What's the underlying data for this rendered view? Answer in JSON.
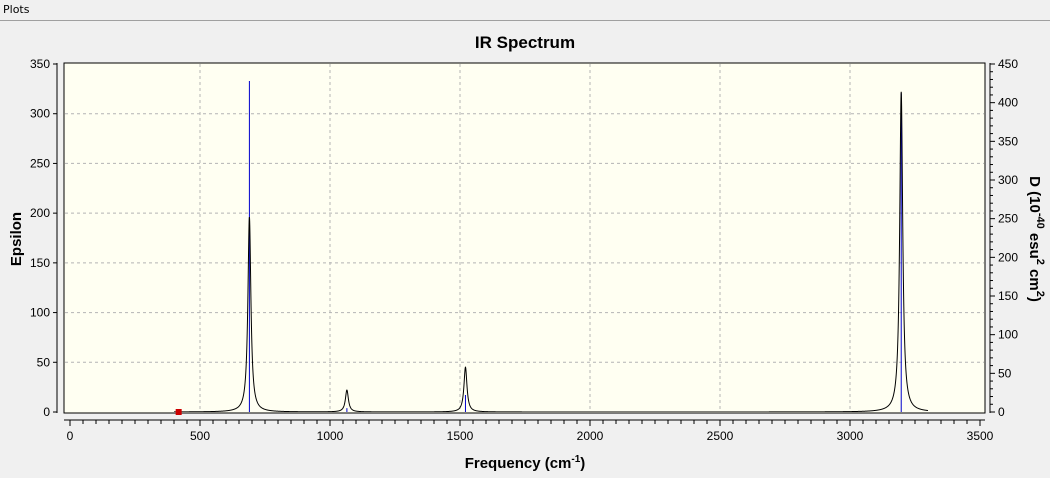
{
  "menu": {
    "plots_label": "Plots"
  },
  "chart_data": {
    "type": "line",
    "title": "IR Spectrum",
    "xlabel": "Frequency (cm",
    "xlabel_sup": "-1",
    "xlabel_end": ")",
    "ylabel_left": "Epsilon",
    "ylabel_right_parts": [
      "D (10",
      "-40",
      " esu",
      "2",
      " cm",
      "2",
      ")"
    ],
    "xlim": [
      0,
      3500
    ],
    "ylim_left": [
      0,
      350
    ],
    "ylim_right": [
      0,
      450
    ],
    "x_ticks": [
      0,
      500,
      1000,
      1500,
      2000,
      2500,
      3000,
      3500
    ],
    "y_ticks_left": [
      0,
      50,
      100,
      150,
      200,
      250,
      300,
      350
    ],
    "y_ticks_right": [
      0,
      50,
      100,
      150,
      200,
      250,
      300,
      350,
      400,
      450
    ],
    "grid": true,
    "colors": {
      "plot_background": "#fffff2",
      "spectrum": "#000000",
      "stick": "#0000cc",
      "marker": "#cc0000",
      "grid": "#b4b4b4"
    },
    "series": [
      {
        "kind": "spectrum",
        "axis": "left",
        "peaks": [
          {
            "x": 690,
            "y": 196
          },
          {
            "x": 1065,
            "y": 22
          },
          {
            "x": 1521,
            "y": 45
          },
          {
            "x": 3197,
            "y": 322
          }
        ],
        "broadening_hwhm": 7
      },
      {
        "kind": "sticks",
        "axis": "right",
        "sticks": [
          {
            "x": 690,
            "y": 428
          },
          {
            "x": 1065,
            "y": 5
          },
          {
            "x": 1521,
            "y": 22
          },
          {
            "x": 3197,
            "y": 412
          }
        ]
      }
    ],
    "marker": {
      "x": 418,
      "y": 0
    }
  }
}
